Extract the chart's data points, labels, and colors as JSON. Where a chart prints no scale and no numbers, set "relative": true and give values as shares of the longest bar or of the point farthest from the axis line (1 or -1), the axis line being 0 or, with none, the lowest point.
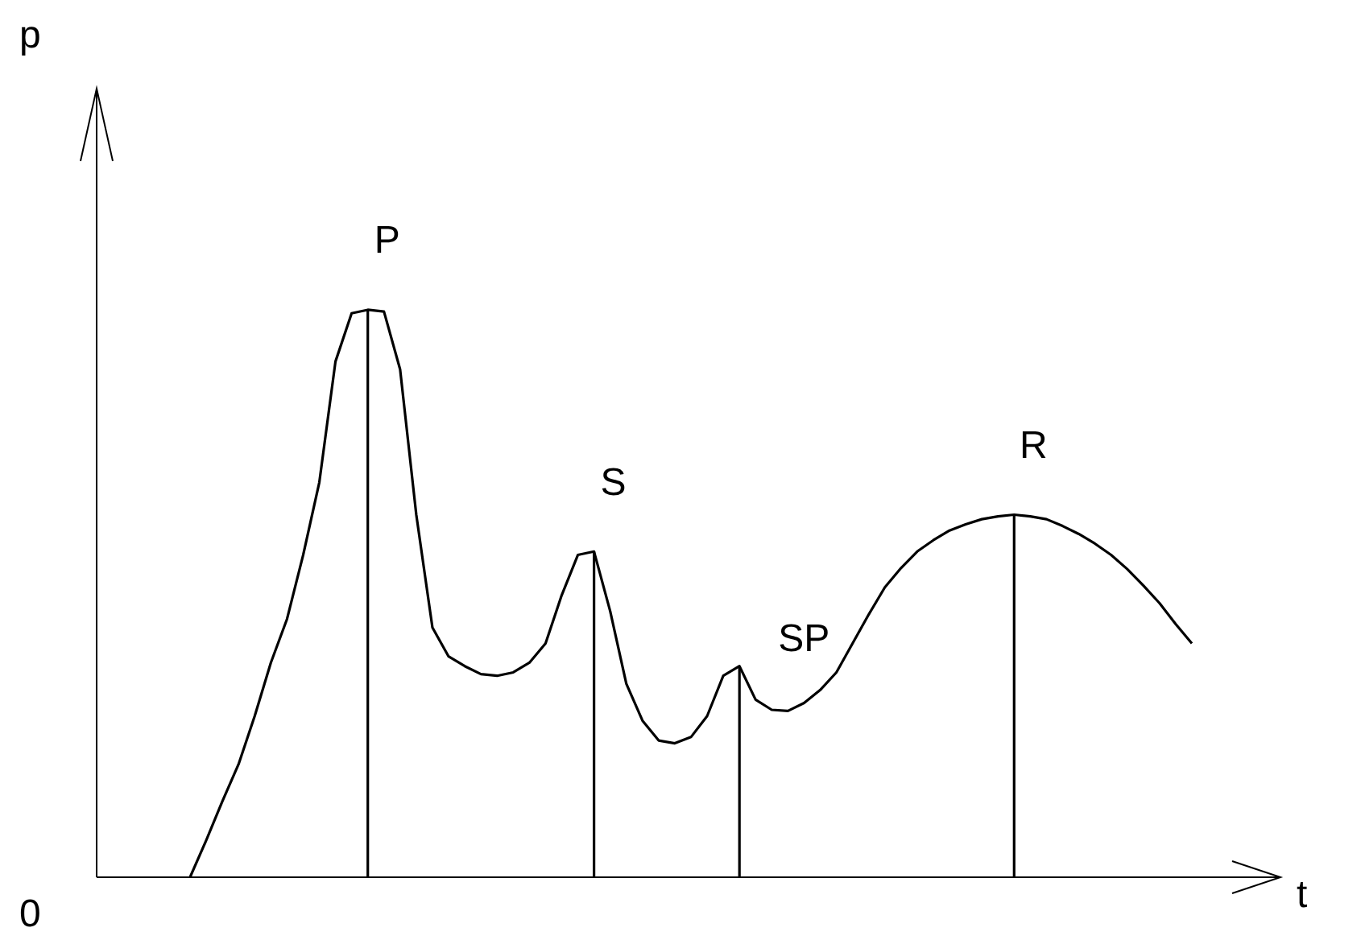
{
  "chart_data": {
    "type": "line",
    "relative": true,
    "categories": [
      null,
      null,
      null,
      null,
      null,
      null,
      null,
      null,
      null,
      null,
      null,
      null,
      null,
      null,
      null,
      null,
      null,
      null,
      null,
      null,
      null,
      null,
      null,
      null,
      null,
      null,
      null,
      null,
      null,
      null,
      null,
      null,
      null,
      null,
      null,
      null,
      null,
      null,
      null,
      null,
      null,
      null,
      null,
      null,
      null,
      null,
      null,
      null,
      null,
      null,
      null,
      null,
      null,
      null,
      null,
      null,
      null,
      null,
      null,
      null,
      null,
      null,
      null
    ],
    "series": [
      {
        "color": "#000000",
        "values": [
          0,
          0.065,
          0.134,
          0.199,
          0.284,
          0.378,
          0.455,
          0.568,
          0.696,
          0.909,
          0.994,
          1,
          0.997,
          0.895,
          0.639,
          0.44,
          0.389,
          0.372,
          0.358,
          0.355,
          0.361,
          0.378,
          0.412,
          0.497,
          0.568,
          0.574,
          0.469,
          0.341,
          0.276,
          0.241,
          0.236,
          0.247,
          0.284,
          0.355,
          0.372,
          0.313,
          0.295,
          0.293,
          0.307,
          0.33,
          0.361,
          0.412,
          0.463,
          0.511,
          0.545,
          0.574,
          0.594,
          0.611,
          0.622,
          0.631,
          0.636,
          0.639,
          0.636,
          0.631,
          0.619,
          0.605,
          0.588,
          0.568,
          0.543,
          0.514,
          0.483,
          0.446,
          0.412
        ]
      }
    ],
    "annotations": [
      "P",
      "S",
      "SP",
      "R",
      "0",
      "p",
      "t"
    ]
  }
}
